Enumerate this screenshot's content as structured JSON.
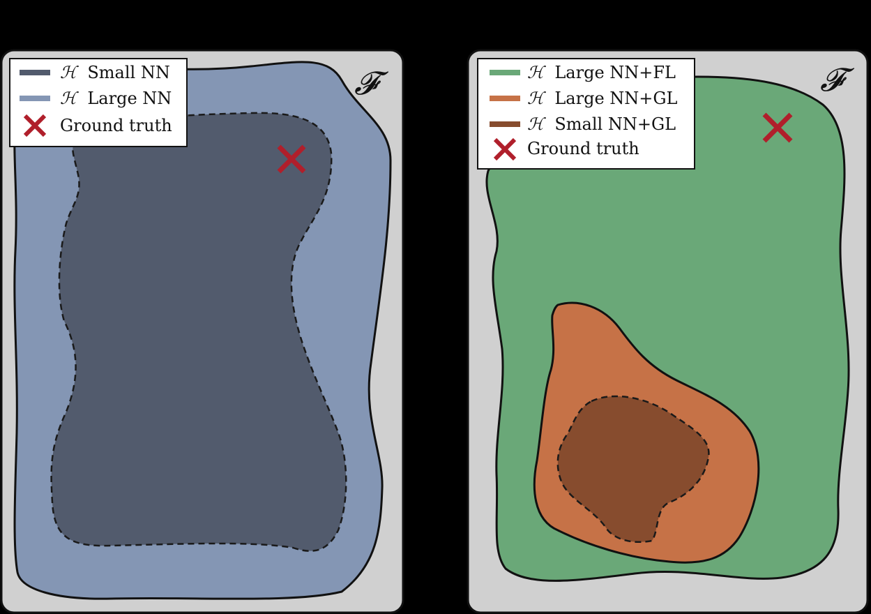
{
  "colors": {
    "background": "#000000",
    "panel_fill": "#d0d0d0",
    "small_nn": "#525b6d",
    "large_nn": "#8496b4",
    "large_nn_fl": "#6aa878",
    "large_nn_gl": "#c67247",
    "small_nn_gl": "#874c2e",
    "ground_truth": "#b01f2b"
  },
  "panels": [
    {
      "space_label": "𝓕",
      "legend": [
        {
          "symbol": "ℋ",
          "label": "Small NN",
          "color_key": "small_nn",
          "marker": "line"
        },
        {
          "symbol": "ℋ",
          "label": "Large NN",
          "color_key": "large_nn",
          "marker": "line"
        },
        {
          "symbol": "",
          "label": "Ground truth",
          "color_key": "ground_truth",
          "marker": "cross"
        }
      ]
    },
    {
      "space_label": "𝓕",
      "legend": [
        {
          "symbol": "ℋ",
          "label": "Large NN+FL",
          "color_key": "large_nn_fl",
          "marker": "line"
        },
        {
          "symbol": "ℋ",
          "label": "Large NN+GL",
          "color_key": "large_nn_gl",
          "marker": "line"
        },
        {
          "symbol": "ℋ",
          "label": "Small NN+GL",
          "color_key": "small_nn_gl",
          "marker": "line"
        },
        {
          "symbol": "",
          "label": "Ground truth",
          "color_key": "ground_truth",
          "marker": "cross"
        }
      ]
    }
  ]
}
